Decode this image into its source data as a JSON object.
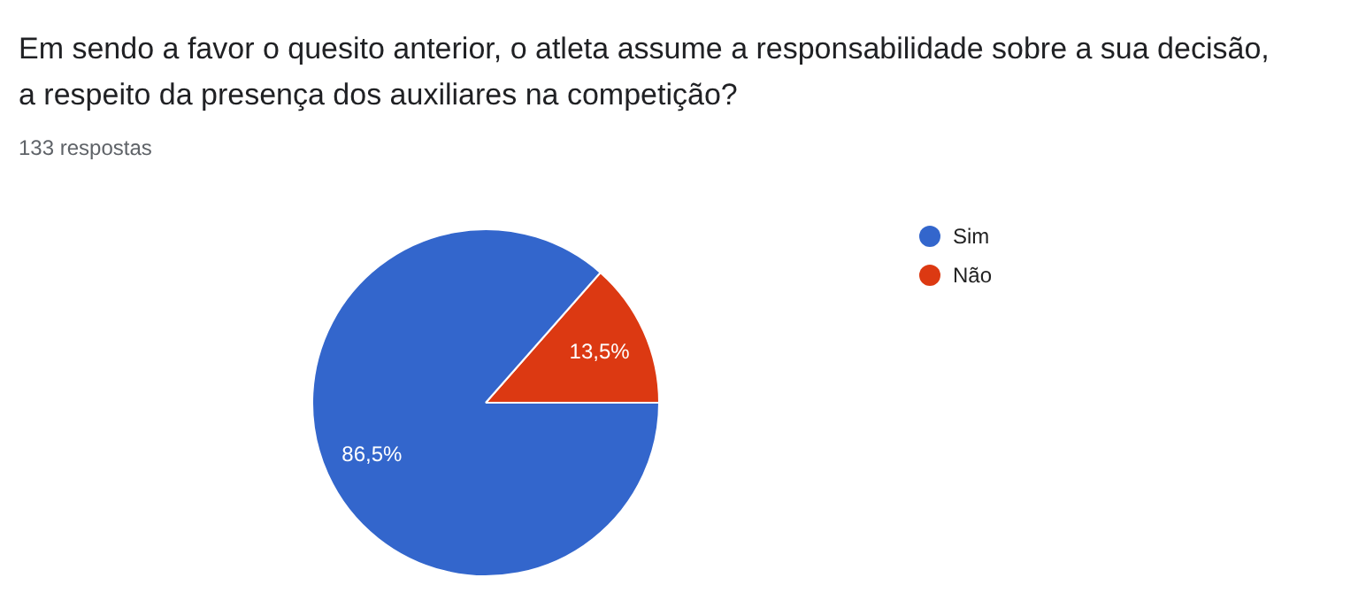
{
  "chart_data": {
    "type": "pie",
    "title": "Em sendo a favor o quesito anterior, o atleta assume a responsabilidade sobre a sua decisão,\na respeito da presença dos auxiliares na competição?",
    "subtitle": "133 respostas",
    "categories": [
      "Sim",
      "Não"
    ],
    "values": [
      86.5,
      13.5
    ],
    "colors": [
      "#3366cc",
      "#dc3912"
    ],
    "value_labels": [
      "86,5%",
      "13,5%"
    ],
    "legend": "right"
  }
}
